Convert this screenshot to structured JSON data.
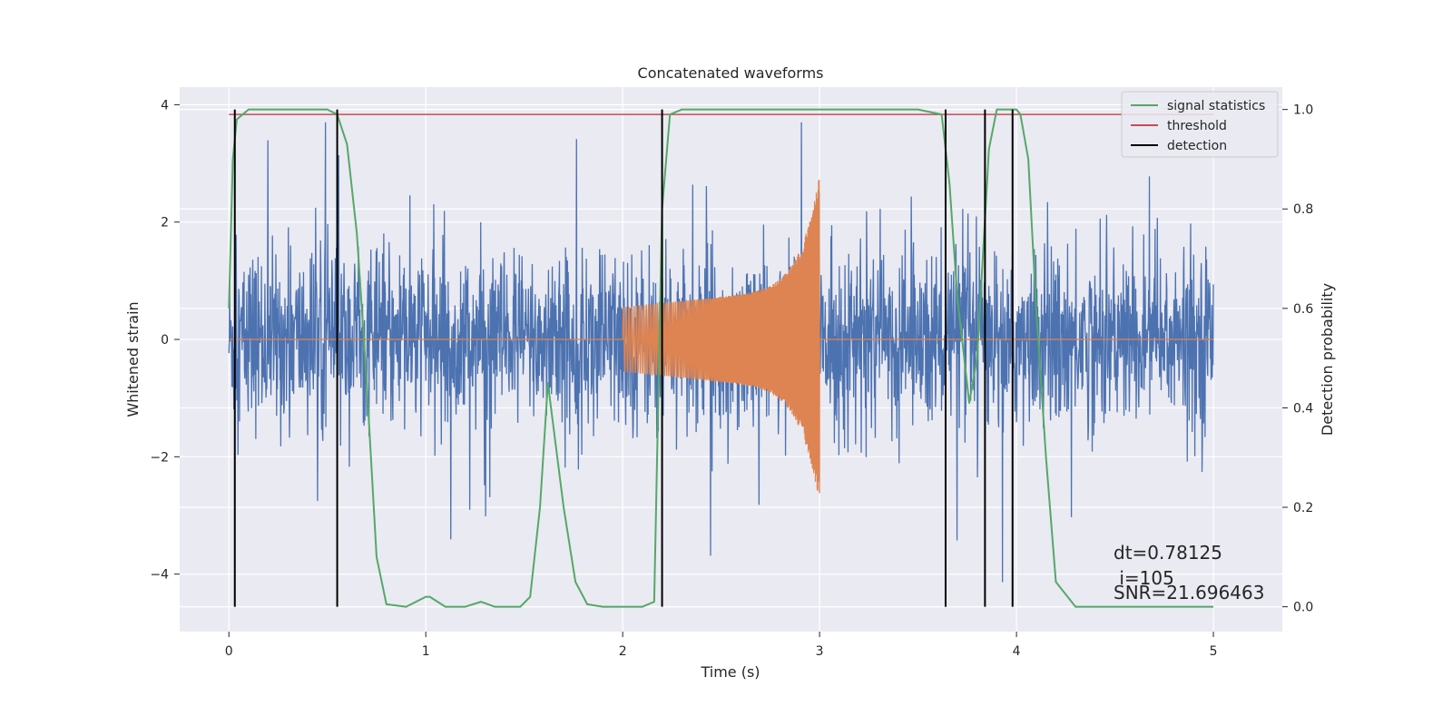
{
  "chart_data": {
    "type": "line",
    "title": "Concatenated waveforms",
    "xlabel": "Time (s)",
    "ylabel": "Whitened strain",
    "y2label": "Detection probability",
    "xlim": [
      -0.25,
      5.35
    ],
    "ylim": [
      -4.98,
      4.3
    ],
    "y2lim": [
      -0.05,
      1.045
    ],
    "xticks": [
      0,
      1,
      2,
      3,
      4,
      5
    ],
    "yticks": [
      -4,
      -2,
      0,
      2,
      4
    ],
    "y2ticks": [
      0.0,
      0.2,
      0.4,
      0.6,
      0.8,
      1.0
    ],
    "y2tick_labels": [
      "0.0",
      "0.2",
      "0.4",
      "0.6",
      "0.8",
      "1.0"
    ],
    "grid": true,
    "legend_position": "top-right",
    "series": [
      {
        "name": "",
        "kind": "whitened-strain",
        "color": "#4c72b0",
        "x_range": [
          0,
          5
        ],
        "amplitude": 1.6
      },
      {
        "name": "",
        "kind": "chirp",
        "color": "#dd8452",
        "x_range": [
          2,
          3
        ],
        "peak": 2.9
      },
      {
        "name": "signal statistics",
        "color": "#55a868",
        "axis": "right",
        "x": [
          0.0,
          0.02,
          0.04,
          0.1,
          0.5,
          0.55,
          0.6,
          0.65,
          0.7,
          0.75,
          0.8,
          0.9,
          1.0,
          1.02,
          1.1,
          1.2,
          1.28,
          1.35,
          1.48,
          1.53,
          1.58,
          1.62,
          1.7,
          1.76,
          1.82,
          1.9,
          2.1,
          2.16,
          2.2,
          2.24,
          2.3,
          2.5,
          3.5,
          3.62,
          3.66,
          3.7,
          3.76,
          3.8,
          3.86,
          3.9,
          4.0,
          4.02,
          4.06,
          4.1,
          4.15,
          4.2,
          4.3,
          5.0
        ],
        "y": [
          0.6,
          0.9,
          0.98,
          1.0,
          1.0,
          0.99,
          0.93,
          0.75,
          0.45,
          0.1,
          0.005,
          0.0,
          0.02,
          0.02,
          0.0,
          0.0,
          0.01,
          0.0,
          0.0,
          0.02,
          0.2,
          0.45,
          0.2,
          0.05,
          0.005,
          0.0,
          0.0,
          0.01,
          0.8,
          0.99,
          1.0,
          1.0,
          1.0,
          0.99,
          0.85,
          0.62,
          0.41,
          0.5,
          0.92,
          1.0,
          1.0,
          0.99,
          0.9,
          0.6,
          0.3,
          0.05,
          0.0,
          0.0
        ]
      },
      {
        "name": "threshold",
        "color": "#c44e52",
        "axis": "right",
        "value": 0.99,
        "x_range": [
          0,
          5
        ]
      },
      {
        "name": "detection",
        "color": "#000000",
        "kind": "vertical-lines",
        "x": [
          0.03,
          0.55,
          2.2,
          3.64,
          3.84,
          3.98
        ]
      }
    ],
    "annotations": [
      "dt=0.78125",
      " i=105",
      "SNR=21.696463"
    ]
  }
}
